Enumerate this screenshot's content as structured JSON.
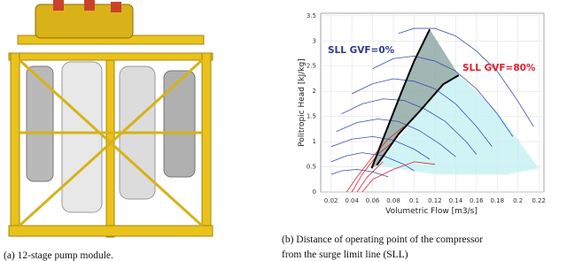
{
  "captions": [
    "(a) 12-stage pump module.",
    "(b) Distance of operating point of the compressor",
    "from the surge limit line (SLL)"
  ],
  "chart_data": {
    "type": "line",
    "xlabel": "Volumetric Flow [m3/s]",
    "ylabel": "Politropic Head [kJ/kg]",
    "xlim": [
      0.01,
      0.225
    ],
    "ylim": [
      0,
      3.55
    ],
    "xticks": [
      0.02,
      0.04,
      0.06,
      0.08,
      0.1,
      0.12,
      0.14,
      0.16,
      0.18,
      0.2,
      0.22
    ],
    "yticks": [
      0,
      0.5,
      1,
      1.5,
      2,
      2.5,
      3,
      3.5
    ],
    "grid": true,
    "band_color": "#8faaa6",
    "annotations": [
      {
        "text": "SLL GVF=0%",
        "color": "#2e3a8c"
      },
      {
        "text": "SLL GVF=80%",
        "color": "#e3202b"
      }
    ],
    "areas": [
      {
        "color": "#c4f1f4",
        "x": [
          0.064,
          0.106,
          0.128,
          0.143,
          0.18,
          0.22,
          0.19,
          0.12,
          0.064
        ],
        "y": [
          0.53,
          1.62,
          2.14,
          2.32,
          1.6,
          0.47,
          0.35,
          0.35,
          0.53
        ]
      }
    ],
    "series": [
      {
        "color": "#000000",
        "x": [
          0.059,
          0.07,
          0.0875,
          0.1,
          0.115
        ],
        "y": [
          0.47,
          1.05,
          1.97,
          2.6,
          3.23
        ]
      },
      {
        "color": "#000000",
        "x": [
          0.064,
          0.085,
          0.106,
          0.128,
          0.143
        ],
        "y": [
          0.53,
          1.15,
          1.62,
          2.14,
          2.32
        ]
      },
      {
        "color": "#3b4fb0",
        "x": [
          0.085,
          0.1,
          0.12,
          0.14,
          0.16,
          0.18,
          0.2,
          0.215
        ],
        "y": [
          3.15,
          3.25,
          3.25,
          3.1,
          2.8,
          2.4,
          1.8,
          1.3
        ]
      },
      {
        "color": "#3b4fb0",
        "x": [
          0.06,
          0.08,
          0.1,
          0.12,
          0.14,
          0.16,
          0.18,
          0.195
        ],
        "y": [
          2.45,
          2.65,
          2.7,
          2.6,
          2.4,
          2.05,
          1.55,
          1.1
        ]
      },
      {
        "color": "#3b4fb0",
        "x": [
          0.04,
          0.06,
          0.08,
          0.1,
          0.12,
          0.14,
          0.16,
          0.175
        ],
        "y": [
          1.95,
          2.15,
          2.25,
          2.2,
          2.05,
          1.75,
          1.3,
          0.9
        ]
      },
      {
        "color": "#3b4fb0",
        "x": [
          0.03,
          0.05,
          0.07,
          0.09,
          0.11,
          0.13,
          0.15,
          0.16
        ],
        "y": [
          1.55,
          1.75,
          1.85,
          1.82,
          1.65,
          1.4,
          1.0,
          0.75
        ]
      },
      {
        "color": "#3b4fb0",
        "x": [
          0.025,
          0.045,
          0.065,
          0.085,
          0.105,
          0.125,
          0.14
        ],
        "y": [
          1.2,
          1.38,
          1.45,
          1.4,
          1.22,
          0.95,
          0.7
        ]
      },
      {
        "color": "#3b4fb0",
        "x": [
          0.02,
          0.04,
          0.06,
          0.08,
          0.1,
          0.115
        ],
        "y": [
          0.9,
          1.05,
          1.1,
          1.03,
          0.85,
          0.65
        ]
      },
      {
        "color": "#3b4fb0",
        "x": [
          0.02,
          0.035,
          0.05,
          0.07,
          0.09,
          0.1
        ],
        "y": [
          0.6,
          0.72,
          0.78,
          0.72,
          0.55,
          0.42
        ]
      },
      {
        "color": "#3b4fb0",
        "x": [
          0.02,
          0.03,
          0.045,
          0.06,
          0.075
        ],
        "y": [
          0.35,
          0.42,
          0.45,
          0.4,
          0.3
        ]
      },
      {
        "color": "#e3202b",
        "x": [
          0.035,
          0.045,
          0.06,
          0.075,
          0.09
        ],
        "y": [
          0,
          0.3,
          0.7,
          1.05,
          1.3
        ]
      },
      {
        "color": "#e3202b",
        "x": [
          0.04,
          0.05,
          0.065,
          0.08
        ],
        "y": [
          0,
          0.35,
          0.75,
          1.0
        ]
      },
      {
        "color": "#e3202b",
        "x": [
          0.045,
          0.055,
          0.07
        ],
        "y": [
          0,
          0.3,
          0.6
        ]
      },
      {
        "color": "#e3202b",
        "x": [
          0.05,
          0.06,
          0.08,
          0.1,
          0.12
        ],
        "y": [
          0,
          0.25,
          0.45,
          0.6,
          0.55
        ]
      }
    ]
  }
}
